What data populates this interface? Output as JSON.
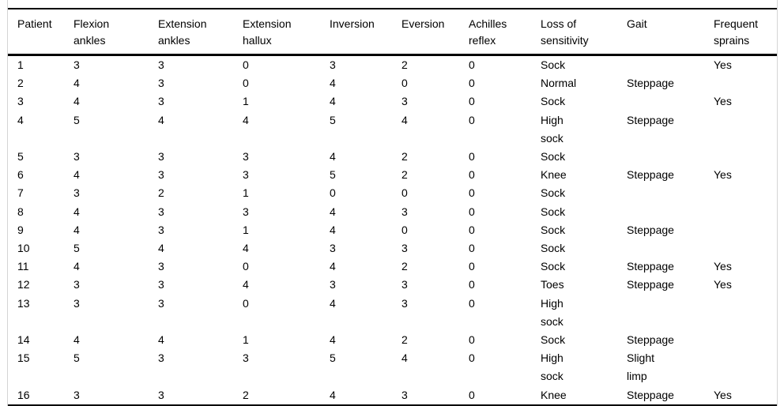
{
  "chart_data": {
    "type": "table",
    "columns": [
      {
        "key": "patient",
        "label": "Patient"
      },
      {
        "key": "flexion-ankles",
        "label": "Flexion\nankles"
      },
      {
        "key": "extension-ankles",
        "label": "Extension\nankles"
      },
      {
        "key": "extension-hallux",
        "label": "Extension\nhallux"
      },
      {
        "key": "inversion",
        "label": "Inversion"
      },
      {
        "key": "eversion",
        "label": "Eversion"
      },
      {
        "key": "achilles-reflex",
        "label": "Achilles\nreflex"
      },
      {
        "key": "loss-of-sensitivity",
        "label": "Loss of\nsensitivity"
      },
      {
        "key": "gait",
        "label": "Gait"
      },
      {
        "key": "frequent-sprains",
        "label": "Frequent\nsprains"
      }
    ],
    "rows": [
      [
        "1",
        "3",
        "3",
        "0",
        "3",
        "2",
        "0",
        "Sock",
        "",
        "Yes"
      ],
      [
        "2",
        "4",
        "3",
        "0",
        "4",
        "0",
        "0",
        "Normal",
        "Steppage",
        ""
      ],
      [
        "3",
        "4",
        "3",
        "1",
        "4",
        "3",
        "0",
        "Sock",
        "",
        "Yes"
      ],
      [
        "4",
        "5",
        "4",
        "4",
        "5",
        "4",
        "0",
        "High\nsock",
        "Steppage",
        ""
      ],
      [
        "5",
        "3",
        "3",
        "3",
        "4",
        "2",
        "0",
        "Sock",
        "",
        ""
      ],
      [
        "6",
        "4",
        "3",
        "3",
        "5",
        "2",
        "0",
        "Knee",
        "Steppage",
        "Yes"
      ],
      [
        "7",
        "3",
        "2",
        "1",
        "0",
        "0",
        "0",
        "Sock",
        "",
        ""
      ],
      [
        "8",
        "4",
        "3",
        "3",
        "4",
        "3",
        "0",
        "Sock",
        "",
        ""
      ],
      [
        "9",
        "4",
        "3",
        "1",
        "4",
        "0",
        "0",
        "Sock",
        "Steppage",
        ""
      ],
      [
        "10",
        "5",
        "4",
        "4",
        "3",
        "3",
        "0",
        "Sock",
        "",
        ""
      ],
      [
        "11",
        "4",
        "3",
        "0",
        "4",
        "2",
        "0",
        "Sock",
        "Steppage",
        "Yes"
      ],
      [
        "12",
        "3",
        "3",
        "4",
        "3",
        "3",
        "0",
        "Toes",
        "Steppage",
        "Yes"
      ],
      [
        "13",
        "3",
        "3",
        "0",
        "4",
        "3",
        "0",
        "High\nsock",
        "",
        ""
      ],
      [
        "14",
        "4",
        "4",
        "1",
        "4",
        "2",
        "0",
        "Sock",
        "Steppage",
        ""
      ],
      [
        "15",
        "5",
        "3",
        "3",
        "5",
        "4",
        "0",
        "High\nsock",
        "Slight\nlimp",
        ""
      ],
      [
        "16",
        "3",
        "3",
        "2",
        "4",
        "3",
        "0",
        "Knee",
        "Steppage",
        "Yes"
      ]
    ]
  }
}
